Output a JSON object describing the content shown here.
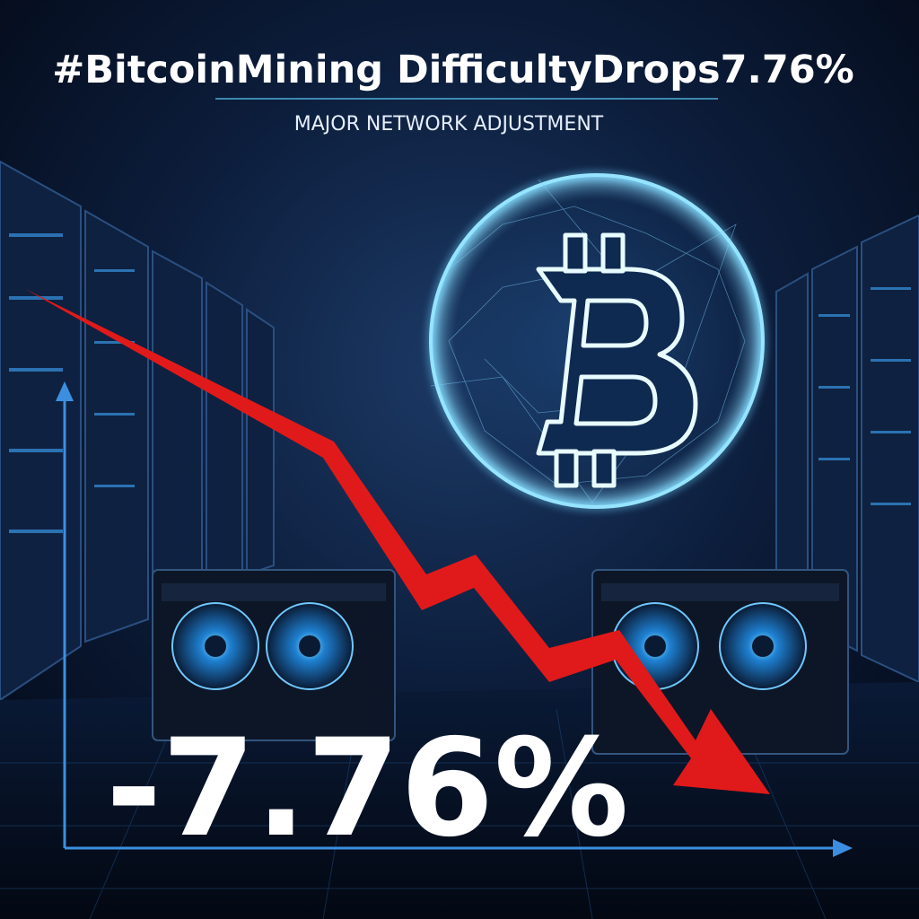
{
  "header": {
    "title": "#BitcoinMining DifficultyDrops7.76%",
    "subtitle": "MAJOR NETWORK ADJUSTMENT"
  },
  "headline_figure": "-7.76%"
}
